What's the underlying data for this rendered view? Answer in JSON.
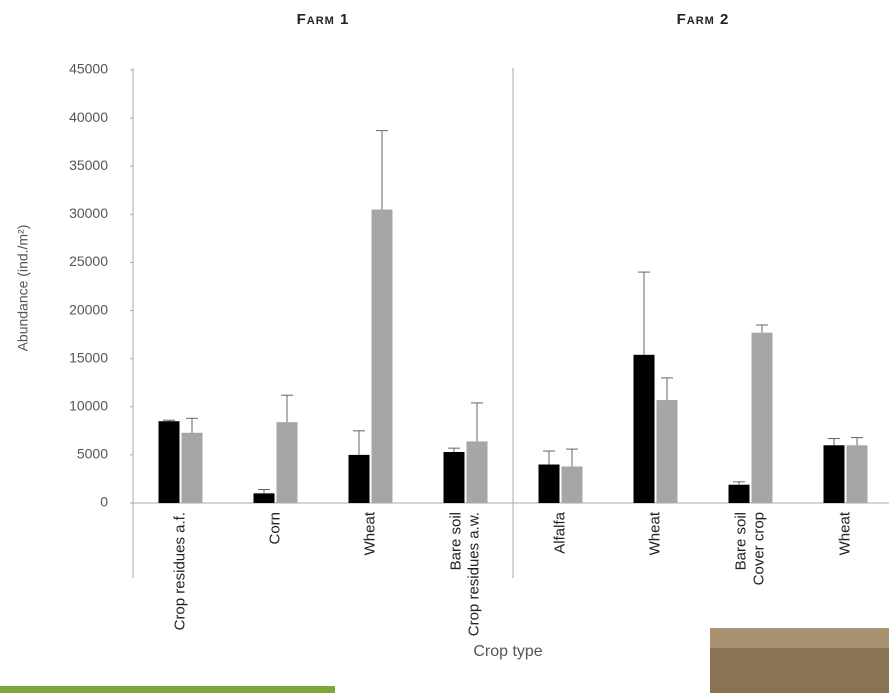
{
  "chart_data": {
    "type": "bar",
    "groups": [
      "Farm 1",
      "Farm 2"
    ],
    "y_label": "Abundance (ind./m²)",
    "x_label": "Crop type",
    "categories": [
      [
        "Crop residues a.f."
      ],
      [
        "Corn"
      ],
      [
        "Wheat"
      ],
      [
        "Bare soil",
        "Crop residues a.w."
      ],
      [
        "Alfalfa"
      ],
      [
        "Wheat"
      ],
      [
        "Bare soil",
        "Cover crop"
      ],
      [
        "Wheat"
      ]
    ],
    "series": [
      {
        "color": "#000000",
        "values": [
          8500,
          1000,
          5000,
          5300,
          4000,
          15400,
          1900,
          6000
        ],
        "errors": [
          100,
          400,
          2500,
          400,
          1400,
          8600,
          300,
          700
        ]
      },
      {
        "color": "#a6a6a6",
        "values": [
          7300,
          8400,
          30500,
          6400,
          3800,
          10700,
          17700,
          6000
        ],
        "errors": [
          1500,
          2800,
          8200,
          4000,
          1800,
          2300,
          800,
          800
        ]
      }
    ],
    "ylim": [
      0,
      45000
    ],
    "yticks": [
      0,
      5000,
      10000,
      15000,
      20000,
      25000,
      30000,
      35000,
      40000,
      45000
    ]
  }
}
